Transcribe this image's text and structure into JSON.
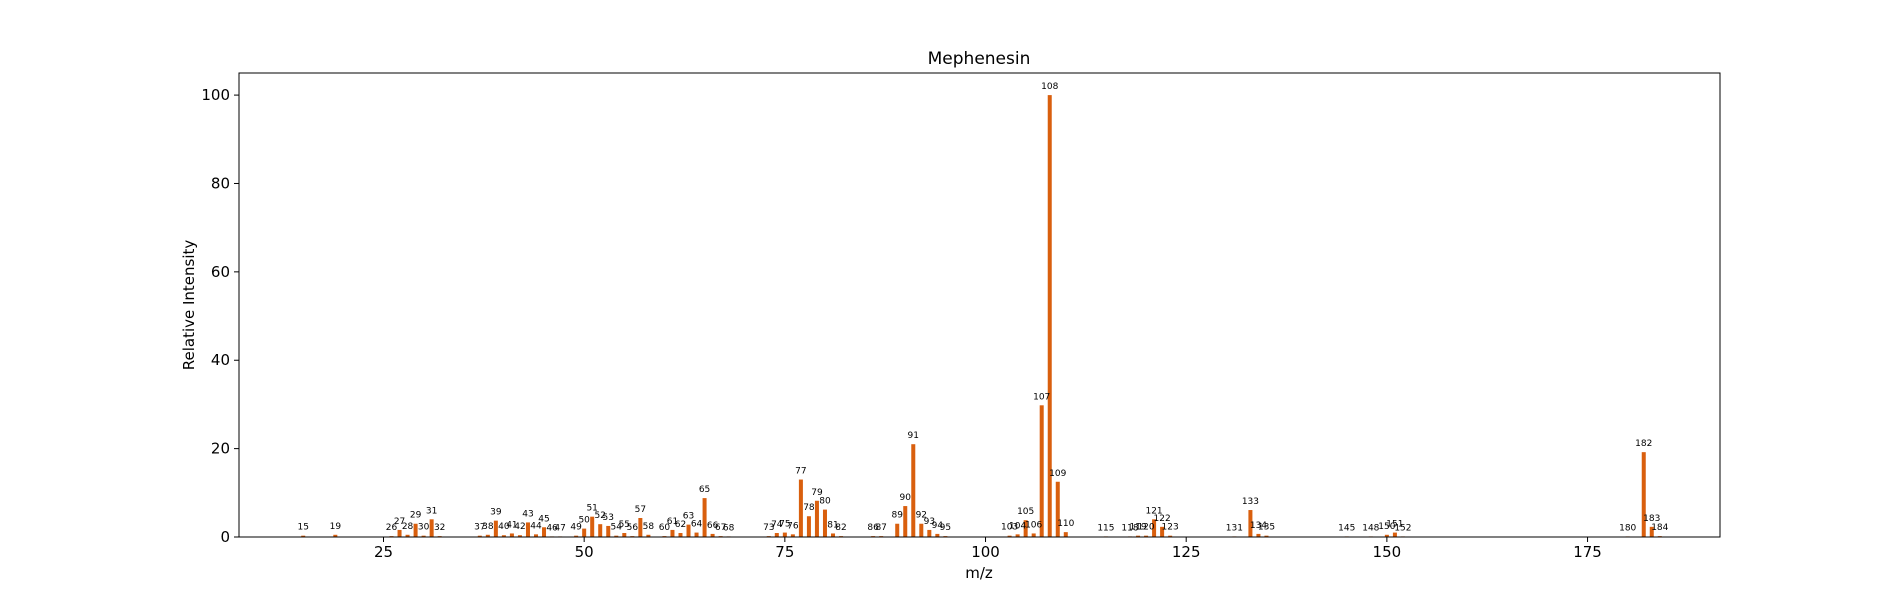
{
  "chart_data": {
    "type": "bar",
    "title": "Mephenesin",
    "xlabel": "m/z",
    "ylabel": "Relative Intensity",
    "xlim": [
      7,
      191.5
    ],
    "ylim": [
      0,
      105
    ],
    "xticks": [
      25,
      50,
      75,
      100,
      125,
      150,
      175
    ],
    "yticks": [
      0,
      20,
      40,
      60,
      80,
      100
    ],
    "grid": false,
    "color": "#d95f0e",
    "peaks": [
      {
        "mz": 15,
        "intensity": 0.3
      },
      {
        "mz": 19,
        "intensity": 0.5
      },
      {
        "mz": 26,
        "intensity": 0.2
      },
      {
        "mz": 27,
        "intensity": 1.6
      },
      {
        "mz": 28,
        "intensity": 0.5
      },
      {
        "mz": 29,
        "intensity": 3.0
      },
      {
        "mz": 30,
        "intensity": 0.3
      },
      {
        "mz": 31,
        "intensity": 4.0
      },
      {
        "mz": 32,
        "intensity": 0.2
      },
      {
        "mz": 37,
        "intensity": 0.3
      },
      {
        "mz": 38,
        "intensity": 0.5
      },
      {
        "mz": 39,
        "intensity": 3.7
      },
      {
        "mz": 40,
        "intensity": 0.4
      },
      {
        "mz": 41,
        "intensity": 0.8
      },
      {
        "mz": 42,
        "intensity": 0.4
      },
      {
        "mz": 43,
        "intensity": 3.3
      },
      {
        "mz": 44,
        "intensity": 0.6
      },
      {
        "mz": 45,
        "intensity": 2.2
      },
      {
        "mz": 46,
        "intensity": 0.1
      },
      {
        "mz": 47,
        "intensity": 0.1
      },
      {
        "mz": 49,
        "intensity": 0.3
      },
      {
        "mz": 50,
        "intensity": 1.9
      },
      {
        "mz": 51,
        "intensity": 4.6
      },
      {
        "mz": 52,
        "intensity": 2.9
      },
      {
        "mz": 53,
        "intensity": 2.5
      },
      {
        "mz": 54,
        "intensity": 0.3
      },
      {
        "mz": 55,
        "intensity": 0.9
      },
      {
        "mz": 56,
        "intensity": 0.2
      },
      {
        "mz": 57,
        "intensity": 4.3
      },
      {
        "mz": 58,
        "intensity": 0.5
      },
      {
        "mz": 60,
        "intensity": 0.2
      },
      {
        "mz": 61,
        "intensity": 1.6
      },
      {
        "mz": 62,
        "intensity": 0.9
      },
      {
        "mz": 63,
        "intensity": 2.8
      },
      {
        "mz": 64,
        "intensity": 1.0
      },
      {
        "mz": 65,
        "intensity": 8.8
      },
      {
        "mz": 66,
        "intensity": 0.7
      },
      {
        "mz": 67,
        "intensity": 0.2
      },
      {
        "mz": 68,
        "intensity": 0.1
      },
      {
        "mz": 73,
        "intensity": 0.2
      },
      {
        "mz": 74,
        "intensity": 0.9
      },
      {
        "mz": 75,
        "intensity": 1.0
      },
      {
        "mz": 76,
        "intensity": 0.6
      },
      {
        "mz": 77,
        "intensity": 13.0
      },
      {
        "mz": 78,
        "intensity": 4.7
      },
      {
        "mz": 79,
        "intensity": 8.2
      },
      {
        "mz": 80,
        "intensity": 6.2
      },
      {
        "mz": 81,
        "intensity": 0.8
      },
      {
        "mz": 82,
        "intensity": 0.2
      },
      {
        "mz": 86,
        "intensity": 0.2
      },
      {
        "mz": 87,
        "intensity": 0.2
      },
      {
        "mz": 89,
        "intensity": 3.0
      },
      {
        "mz": 90,
        "intensity": 7.0
      },
      {
        "mz": 91,
        "intensity": 21.0
      },
      {
        "mz": 92,
        "intensity": 3.0
      },
      {
        "mz": 93,
        "intensity": 1.6
      },
      {
        "mz": 94,
        "intensity": 0.7
      },
      {
        "mz": 95,
        "intensity": 0.2
      },
      {
        "mz": 103,
        "intensity": 0.3
      },
      {
        "mz": 104,
        "intensity": 0.6
      },
      {
        "mz": 105,
        "intensity": 3.8
      },
      {
        "mz": 106,
        "intensity": 0.8
      },
      {
        "mz": 107,
        "intensity": 29.8
      },
      {
        "mz": 108,
        "intensity": 100.0
      },
      {
        "mz": 109,
        "intensity": 12.5
      },
      {
        "mz": 110,
        "intensity": 1.1
      },
      {
        "mz": 115,
        "intensity": 0.1
      },
      {
        "mz": 118,
        "intensity": 0.1
      },
      {
        "mz": 119,
        "intensity": 0.3
      },
      {
        "mz": 120,
        "intensity": 0.3
      },
      {
        "mz": 121,
        "intensity": 4.0
      },
      {
        "mz": 122,
        "intensity": 2.3
      },
      {
        "mz": 123,
        "intensity": 0.3
      },
      {
        "mz": 131,
        "intensity": 0.1
      },
      {
        "mz": 133,
        "intensity": 6.1
      },
      {
        "mz": 134,
        "intensity": 0.7
      },
      {
        "mz": 135,
        "intensity": 0.3
      },
      {
        "mz": 145,
        "intensity": 0.1
      },
      {
        "mz": 148,
        "intensity": 0.1
      },
      {
        "mz": 150,
        "intensity": 0.5
      },
      {
        "mz": 151,
        "intensity": 1.0
      },
      {
        "mz": 152,
        "intensity": 0.1
      },
      {
        "mz": 180,
        "intensity": 0.1
      },
      {
        "mz": 182,
        "intensity": 19.2
      },
      {
        "mz": 183,
        "intensity": 2.3
      },
      {
        "mz": 184,
        "intensity": 0.2
      }
    ]
  }
}
